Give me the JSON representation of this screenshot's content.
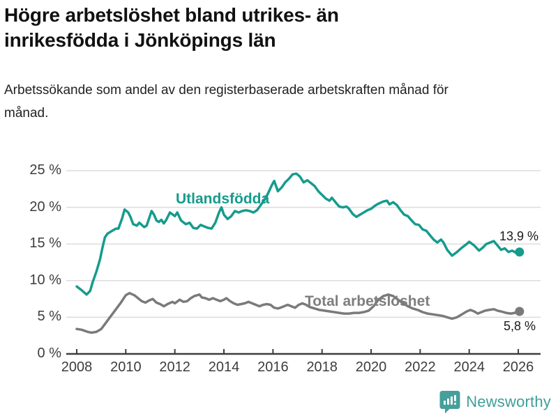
{
  "title": "Högre arbetslöshet bland utrikes- än inrikesfödda i Jönköpings län",
  "subtitle": "Arbetssökande som andel av den registerbaserade arbetskraften månad för månad.",
  "branding": {
    "name": "Newsworthy",
    "color": "#3f9e99"
  },
  "colors": {
    "series_foreign_born": "#169b8d",
    "series_total": "#7a7a7a",
    "gridline": "#dcdcdc",
    "axis": "#3d3d3d",
    "text": "#1a1a1a"
  },
  "chart_data": {
    "type": "line",
    "title": "Högre arbetslöshet bland utrikes- än inrikesfödda i Jönköpings län",
    "subtitle": "Arbetssökande som andel av den registerbaserade arbetskraften månad för månad.",
    "xlabel": "",
    "ylabel": "",
    "x_unit": "year (monthly data)",
    "xlim": [
      2007.6,
      2026.8
    ],
    "ylim": [
      0,
      25
    ],
    "grid": "horizontal",
    "legend_position": "inline-labels",
    "y_ticks": [
      0,
      5,
      10,
      15,
      20,
      25
    ],
    "y_tick_labels": [
      "0 %",
      "5 %",
      "10 %",
      "15 %",
      "20 %",
      "25 %"
    ],
    "x_ticks": [
      2008,
      2010,
      2012,
      2014,
      2016,
      2018,
      2020,
      2022,
      2024,
      2026
    ],
    "series": [
      {
        "name": "Utlandsfödda",
        "color": "#169b8d",
        "end_label": "13,9 %",
        "end_value": 13.9,
        "points": [
          [
            2008.0,
            9.2
          ],
          [
            2008.2,
            8.7
          ],
          [
            2008.4,
            8.1
          ],
          [
            2008.55,
            8.6
          ],
          [
            2008.65,
            9.8
          ],
          [
            2008.8,
            11.2
          ],
          [
            2008.95,
            12.9
          ],
          [
            2009.05,
            14.5
          ],
          [
            2009.15,
            15.9
          ],
          [
            2009.25,
            16.4
          ],
          [
            2009.4,
            16.7
          ],
          [
            2009.6,
            17.1
          ],
          [
            2009.7,
            17.1
          ],
          [
            2009.85,
            18.5
          ],
          [
            2009.95,
            19.7
          ],
          [
            2010.1,
            19.3
          ],
          [
            2010.2,
            18.6
          ],
          [
            2010.3,
            17.7
          ],
          [
            2010.45,
            17.5
          ],
          [
            2010.55,
            17.9
          ],
          [
            2010.65,
            17.6
          ],
          [
            2010.75,
            17.3
          ],
          [
            2010.85,
            17.5
          ],
          [
            2010.95,
            18.5
          ],
          [
            2011.05,
            19.5
          ],
          [
            2011.15,
            19.0
          ],
          [
            2011.25,
            18.2
          ],
          [
            2011.35,
            18.0
          ],
          [
            2011.45,
            18.3
          ],
          [
            2011.55,
            17.8
          ],
          [
            2011.65,
            18.3
          ],
          [
            2011.8,
            19.3
          ],
          [
            2012.0,
            18.8
          ],
          [
            2012.1,
            19.3
          ],
          [
            2012.25,
            18.2
          ],
          [
            2012.45,
            17.7
          ],
          [
            2012.6,
            17.9
          ],
          [
            2012.75,
            17.2
          ],
          [
            2012.9,
            17.1
          ],
          [
            2013.05,
            17.6
          ],
          [
            2013.2,
            17.4
          ],
          [
            2013.35,
            17.2
          ],
          [
            2013.5,
            17.1
          ],
          [
            2013.65,
            17.9
          ],
          [
            2013.8,
            19.3
          ],
          [
            2013.9,
            20.0
          ],
          [
            2014.0,
            19.0
          ],
          [
            2014.15,
            18.4
          ],
          [
            2014.3,
            18.8
          ],
          [
            2014.45,
            19.5
          ],
          [
            2014.6,
            19.3
          ],
          [
            2014.75,
            19.5
          ],
          [
            2014.9,
            19.6
          ],
          [
            2015.05,
            19.5
          ],
          [
            2015.2,
            19.3
          ],
          [
            2015.35,
            19.6
          ],
          [
            2015.5,
            20.3
          ],
          [
            2015.65,
            21.0
          ],
          [
            2015.8,
            21.9
          ],
          [
            2015.95,
            23.0
          ],
          [
            2016.05,
            23.6
          ],
          [
            2016.2,
            22.2
          ],
          [
            2016.35,
            22.7
          ],
          [
            2016.5,
            23.4
          ],
          [
            2016.65,
            23.9
          ],
          [
            2016.8,
            24.5
          ],
          [
            2016.95,
            24.6
          ],
          [
            2017.1,
            24.2
          ],
          [
            2017.25,
            23.4
          ],
          [
            2017.4,
            23.7
          ],
          [
            2017.55,
            23.3
          ],
          [
            2017.7,
            22.9
          ],
          [
            2017.85,
            22.2
          ],
          [
            2018.0,
            21.7
          ],
          [
            2018.15,
            21.2
          ],
          [
            2018.3,
            20.9
          ],
          [
            2018.4,
            21.3
          ],
          [
            2018.55,
            20.7
          ],
          [
            2018.7,
            20.1
          ],
          [
            2018.85,
            20.0
          ],
          [
            2019.0,
            20.1
          ],
          [
            2019.1,
            19.8
          ],
          [
            2019.25,
            19.1
          ],
          [
            2019.4,
            18.7
          ],
          [
            2019.55,
            19.0
          ],
          [
            2019.7,
            19.3
          ],
          [
            2019.85,
            19.6
          ],
          [
            2020.0,
            19.8
          ],
          [
            2020.15,
            20.2
          ],
          [
            2020.3,
            20.5
          ],
          [
            2020.5,
            20.8
          ],
          [
            2020.65,
            20.9
          ],
          [
            2020.75,
            20.4
          ],
          [
            2020.9,
            20.7
          ],
          [
            2021.05,
            20.3
          ],
          [
            2021.2,
            19.6
          ],
          [
            2021.35,
            19.0
          ],
          [
            2021.5,
            18.8
          ],
          [
            2021.65,
            18.2
          ],
          [
            2021.8,
            17.7
          ],
          [
            2021.95,
            17.6
          ],
          [
            2022.1,
            17.0
          ],
          [
            2022.25,
            16.8
          ],
          [
            2022.4,
            16.2
          ],
          [
            2022.55,
            15.6
          ],
          [
            2022.7,
            15.2
          ],
          [
            2022.85,
            15.6
          ],
          [
            2022.95,
            15.2
          ],
          [
            2023.1,
            14.2
          ],
          [
            2023.3,
            13.4
          ],
          [
            2023.5,
            13.9
          ],
          [
            2023.7,
            14.5
          ],
          [
            2023.9,
            15.0
          ],
          [
            2024.0,
            15.3
          ],
          [
            2024.2,
            14.8
          ],
          [
            2024.4,
            14.1
          ],
          [
            2024.55,
            14.5
          ],
          [
            2024.7,
            15.0
          ],
          [
            2024.85,
            15.2
          ],
          [
            2025.0,
            15.4
          ],
          [
            2025.15,
            14.8
          ],
          [
            2025.3,
            14.2
          ],
          [
            2025.45,
            14.4
          ],
          [
            2025.6,
            13.9
          ],
          [
            2025.75,
            14.1
          ],
          [
            2025.9,
            13.8
          ],
          [
            2026.05,
            13.9
          ]
        ]
      },
      {
        "name": "Total arbetslöshet",
        "color": "#7a7a7a",
        "end_label": "5,8 %",
        "end_value": 5.8,
        "points": [
          [
            2008.0,
            3.4
          ],
          [
            2008.2,
            3.3
          ],
          [
            2008.45,
            3.0
          ],
          [
            2008.6,
            2.9
          ],
          [
            2008.8,
            3.0
          ],
          [
            2009.0,
            3.4
          ],
          [
            2009.2,
            4.3
          ],
          [
            2009.4,
            5.2
          ],
          [
            2009.6,
            6.1
          ],
          [
            2009.8,
            7.0
          ],
          [
            2010.0,
            8.0
          ],
          [
            2010.15,
            8.3
          ],
          [
            2010.35,
            8.0
          ],
          [
            2010.5,
            7.6
          ],
          [
            2010.65,
            7.2
          ],
          [
            2010.8,
            7.0
          ],
          [
            2010.95,
            7.3
          ],
          [
            2011.1,
            7.5
          ],
          [
            2011.25,
            7.0
          ],
          [
            2011.4,
            6.8
          ],
          [
            2011.55,
            6.5
          ],
          [
            2011.7,
            6.8
          ],
          [
            2011.9,
            7.1
          ],
          [
            2012.0,
            6.9
          ],
          [
            2012.2,
            7.4
          ],
          [
            2012.35,
            7.1
          ],
          [
            2012.5,
            7.2
          ],
          [
            2012.65,
            7.6
          ],
          [
            2012.8,
            7.9
          ],
          [
            2013.0,
            8.1
          ],
          [
            2013.1,
            7.7
          ],
          [
            2013.25,
            7.6
          ],
          [
            2013.4,
            7.4
          ],
          [
            2013.55,
            7.6
          ],
          [
            2013.7,
            7.4
          ],
          [
            2013.85,
            7.2
          ],
          [
            2014.0,
            7.4
          ],
          [
            2014.1,
            7.6
          ],
          [
            2014.25,
            7.2
          ],
          [
            2014.4,
            6.9
          ],
          [
            2014.55,
            6.7
          ],
          [
            2014.7,
            6.8
          ],
          [
            2014.85,
            6.9
          ],
          [
            2015.0,
            7.1
          ],
          [
            2015.15,
            6.9
          ],
          [
            2015.3,
            6.7
          ],
          [
            2015.45,
            6.5
          ],
          [
            2015.6,
            6.7
          ],
          [
            2015.75,
            6.8
          ],
          [
            2015.9,
            6.7
          ],
          [
            2016.05,
            6.3
          ],
          [
            2016.2,
            6.2
          ],
          [
            2016.3,
            6.3
          ],
          [
            2016.45,
            6.5
          ],
          [
            2016.6,
            6.7
          ],
          [
            2016.75,
            6.5
          ],
          [
            2016.9,
            6.3
          ],
          [
            2017.05,
            6.7
          ],
          [
            2017.2,
            6.9
          ],
          [
            2017.35,
            6.7
          ],
          [
            2017.5,
            6.4
          ],
          [
            2017.7,
            6.2
          ],
          [
            2017.9,
            6.0
          ],
          [
            2018.1,
            5.9
          ],
          [
            2018.3,
            5.8
          ],
          [
            2018.5,
            5.7
          ],
          [
            2018.7,
            5.6
          ],
          [
            2018.9,
            5.5
          ],
          [
            2019.1,
            5.5
          ],
          [
            2019.3,
            5.6
          ],
          [
            2019.5,
            5.6
          ],
          [
            2019.7,
            5.7
          ],
          [
            2019.9,
            5.9
          ],
          [
            2020.1,
            6.5
          ],
          [
            2020.3,
            7.4
          ],
          [
            2020.5,
            7.9
          ],
          [
            2020.7,
            8.1
          ],
          [
            2020.9,
            7.9
          ],
          [
            2021.1,
            7.4
          ],
          [
            2021.3,
            6.9
          ],
          [
            2021.5,
            6.5
          ],
          [
            2021.7,
            6.2
          ],
          [
            2021.9,
            6.0
          ],
          [
            2022.1,
            5.7
          ],
          [
            2022.3,
            5.5
          ],
          [
            2022.5,
            5.4
          ],
          [
            2022.7,
            5.3
          ],
          [
            2022.9,
            5.2
          ],
          [
            2023.1,
            5.0
          ],
          [
            2023.3,
            4.8
          ],
          [
            2023.5,
            5.0
          ],
          [
            2023.7,
            5.4
          ],
          [
            2023.9,
            5.8
          ],
          [
            2024.05,
            6.0
          ],
          [
            2024.2,
            5.8
          ],
          [
            2024.35,
            5.5
          ],
          [
            2024.5,
            5.7
          ],
          [
            2024.65,
            5.9
          ],
          [
            2024.8,
            6.0
          ],
          [
            2025.0,
            6.1
          ],
          [
            2025.15,
            5.9
          ],
          [
            2025.3,
            5.8
          ],
          [
            2025.5,
            5.6
          ],
          [
            2025.7,
            5.5
          ],
          [
            2025.85,
            5.6
          ],
          [
            2026.05,
            5.8
          ]
        ]
      }
    ]
  }
}
